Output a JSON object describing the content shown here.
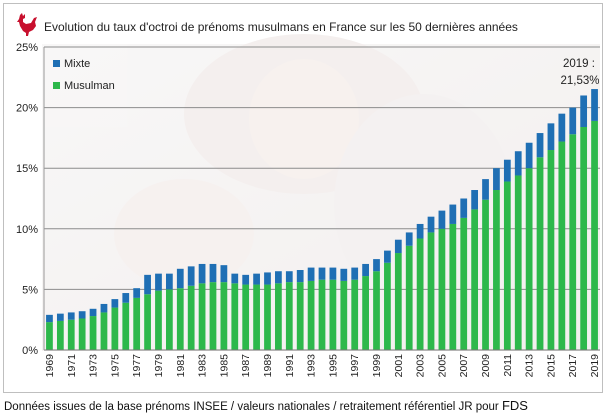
{
  "chart_data": {
    "type": "bar",
    "stacked": true,
    "title": "Evolution du taux d'octroi de prénoms musulmans en France sur les 50 dernières années",
    "categories": [
      "1969",
      "1970",
      "1971",
      "1972",
      "1973",
      "1974",
      "1975",
      "1976",
      "1977",
      "1978",
      "1979",
      "1980",
      "1981",
      "1982",
      "1983",
      "1984",
      "1985",
      "1986",
      "1987",
      "1988",
      "1989",
      "1990",
      "1991",
      "1992",
      "1993",
      "1994",
      "1995",
      "1996",
      "1997",
      "1998",
      "1999",
      "2000",
      "2001",
      "2002",
      "2003",
      "2004",
      "2005",
      "2006",
      "2007",
      "2008",
      "2009",
      "2010",
      "2011",
      "2012",
      "2013",
      "2014",
      "2015",
      "2016",
      "2017",
      "2018",
      "2019"
    ],
    "xtick_labels": [
      "1969",
      "1971",
      "1973",
      "1975",
      "1977",
      "1979",
      "1981",
      "1983",
      "1985",
      "1987",
      "1989",
      "1991",
      "1993",
      "1995",
      "1997",
      "1999",
      "2001",
      "2003",
      "2005",
      "2007",
      "2009",
      "2011",
      "2013",
      "2015",
      "2017",
      "2019"
    ],
    "series": [
      {
        "name": "Musulman",
        "color": "#2db84b",
        "values": [
          2.3,
          2.4,
          2.5,
          2.6,
          2.8,
          3.1,
          3.5,
          3.9,
          4.3,
          4.6,
          4.9,
          5.0,
          5.1,
          5.3,
          5.5,
          5.6,
          5.6,
          5.5,
          5.4,
          5.4,
          5.4,
          5.5,
          5.6,
          5.6,
          5.7,
          5.8,
          5.8,
          5.7,
          5.8,
          6.1,
          6.5,
          7.2,
          8.0,
          8.6,
          9.2,
          9.7,
          10.0,
          10.4,
          10.9,
          11.6,
          12.4,
          13.2,
          13.9,
          14.4,
          15.0,
          15.9,
          16.5,
          17.2,
          17.8,
          18.4,
          18.9
        ]
      },
      {
        "name": "Mixte",
        "color": "#1f6fb4",
        "values": [
          0.6,
          0.6,
          0.6,
          0.6,
          0.6,
          0.7,
          0.7,
          0.8,
          0.8,
          1.6,
          1.4,
          1.3,
          1.6,
          1.6,
          1.6,
          1.5,
          1.4,
          0.8,
          0.8,
          0.9,
          1.0,
          1.0,
          0.9,
          1.0,
          1.1,
          1.0,
          1.0,
          1.0,
          1.0,
          1.0,
          1.0,
          1.0,
          1.1,
          1.1,
          1.2,
          1.3,
          1.5,
          1.6,
          1.6,
          1.6,
          1.7,
          1.8,
          1.8,
          2.0,
          2.1,
          2.0,
          2.2,
          2.3,
          2.2,
          2.6,
          2.63
        ]
      }
    ],
    "ylim": [
      0,
      25
    ],
    "yticks": [
      "0%",
      "5%",
      "10%",
      "15%",
      "20%",
      "25%"
    ],
    "legend": [
      {
        "label": "Mixte",
        "color": "#1f6fb4"
      },
      {
        "label": "Musulman",
        "color": "#2db84b"
      }
    ],
    "legend_position": "top-left",
    "grid": true,
    "annotation": {
      "line1": "2019 :",
      "line2": "21,53%"
    }
  },
  "footer": "Données issues de la base prénoms INSEE / valeurs nationales / retraitement référentiel JR pour",
  "footer_brand": "FDS"
}
